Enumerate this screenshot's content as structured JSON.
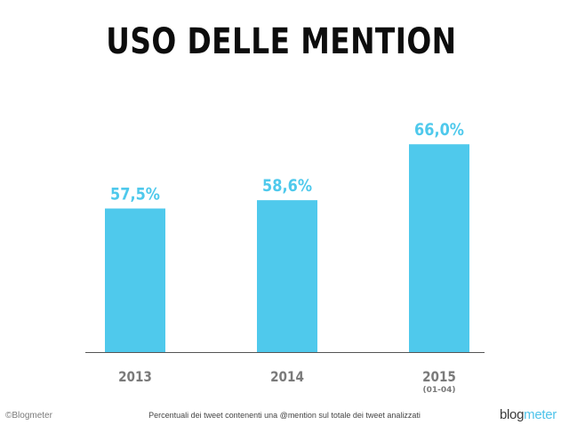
{
  "chart_data": {
    "type": "bar",
    "title": "USO DELLE MENTION",
    "categories": [
      "2013",
      "2014",
      "2015"
    ],
    "category_sublabels": [
      "",
      "",
      "(01-04)"
    ],
    "values": [
      57.5,
      58.6,
      66.0
    ],
    "value_labels": [
      "57,5%",
      "58,6%",
      "66,0%"
    ],
    "unit": "%",
    "bar_color": "#4fc9ec",
    "label_color": "#4fc9ec",
    "axis_color": "#555555",
    "tick_label_color": "#7a7a7a",
    "grid": false,
    "legend": "none"
  },
  "footer": {
    "copyright": "©Blogmeter",
    "caption": "Percentuali dei tweet contenenti una @mention sul totale dei tweet analizzati",
    "logo_part1": "blog",
    "logo_part2": "meter"
  }
}
